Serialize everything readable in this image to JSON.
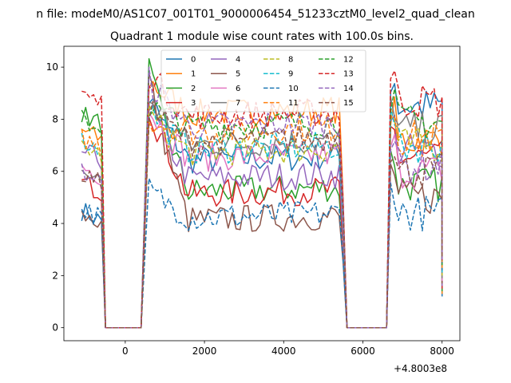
{
  "chart_data": {
    "type": "line",
    "suptitle": "n file: modeM0/AS1C07_001T01_9000006454_51233cztM0_level2_quad_clean",
    "title": "Quadrant 1 module wise count rates with 100.0s bins.",
    "xlabel": "",
    "ylabel": "",
    "x_offset_label": "+4.8003e8",
    "xlim": [
      -1550,
      8450
    ],
    "ylim": [
      -0.5,
      10.8
    ],
    "xticks": [
      0,
      2000,
      4000,
      6000,
      8000
    ],
    "yticks": [
      0,
      2,
      4,
      6,
      8,
      10
    ],
    "grid": false,
    "legend_position": "top-center",
    "legend_columns": 4,
    "series": [
      {
        "name": "0",
        "color": "#1f77b4",
        "dash": "solid",
        "levels": [
          4.5,
          6.5,
          8.8,
          8.5
        ]
      },
      {
        "name": "1",
        "color": "#ff7f0e",
        "dash": "solid",
        "levels": [
          7.6,
          8.3,
          9.5,
          7.2
        ]
      },
      {
        "name": "2",
        "color": "#2ca02c",
        "dash": "solid",
        "levels": [
          8.2,
          5.3,
          9.9,
          5.5
        ]
      },
      {
        "name": "3",
        "color": "#d62728",
        "dash": "solid",
        "levels": [
          5.6,
          5.2,
          8.5,
          6.5
        ]
      },
      {
        "name": "4",
        "color": "#9467bd",
        "dash": "solid",
        "levels": [
          6.8,
          5.8,
          8.5,
          6.8
        ]
      },
      {
        "name": "5",
        "color": "#8c564b",
        "dash": "solid",
        "levels": [
          4.4,
          4.2,
          9.6,
          5.0
        ]
      },
      {
        "name": "6",
        "color": "#e377c2",
        "dash": "solid",
        "levels": [
          6.2,
          6.6,
          8.4,
          6.0
        ]
      },
      {
        "name": "7",
        "color": "#7f7f7f",
        "dash": "solid",
        "levels": [
          6.0,
          7.1,
          8.8,
          7.6
        ]
      },
      {
        "name": "8",
        "color": "#bcbd22",
        "dash": "dashed",
        "levels": [
          7.0,
          6.8,
          8.2,
          7.0
        ]
      },
      {
        "name": "9",
        "color": "#17becf",
        "dash": "dashed",
        "levels": [
          7.2,
          6.9,
          8.4,
          7.0
        ]
      },
      {
        "name": "10",
        "color": "#1f77b4",
        "dash": "dashed",
        "levels": [
          4.6,
          4.3,
          5.3,
          4.4
        ]
      },
      {
        "name": "11",
        "color": "#ff7f0e",
        "dash": "dashed",
        "levels": [
          7.3,
          7.6,
          8.0,
          7.3
        ]
      },
      {
        "name": "12",
        "color": "#2ca02c",
        "dash": "dashed",
        "levels": [
          8.0,
          7.8,
          8.5,
          7.9
        ]
      },
      {
        "name": "13",
        "color": "#d62728",
        "dash": "dashed",
        "levels": [
          9.0,
          8.2,
          9.8,
          8.7
        ]
      },
      {
        "name": "14",
        "color": "#9467bd",
        "dash": "dashed",
        "levels": [
          6.0,
          7.8,
          9.5,
          6.2
        ]
      },
      {
        "name": "15",
        "color": "#8c564b",
        "dash": "dashed",
        "levels": [
          5.9,
          7.2,
          8.5,
          6.0
        ]
      }
    ]
  }
}
